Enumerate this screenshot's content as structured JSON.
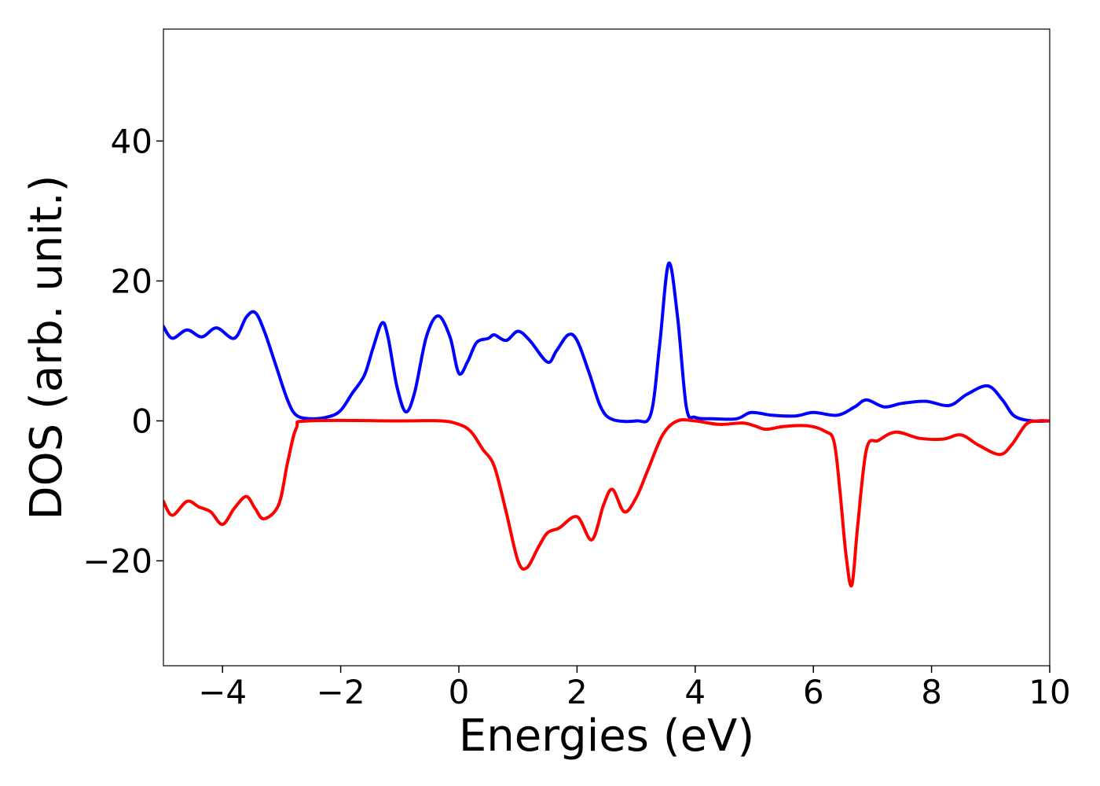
{
  "chart_data": {
    "type": "line",
    "title": "",
    "xlabel": "Energies (eV)",
    "ylabel": "DOS (arb. unit.)",
    "xlim": [
      -5,
      10
    ],
    "ylim": [
      -35,
      56
    ],
    "grid": false,
    "legend": "none",
    "x_ticks": [
      -4,
      -2,
      0,
      2,
      4,
      6,
      8,
      10
    ],
    "x_tick_labels": [
      "−4",
      "−2",
      "0",
      "2",
      "4",
      "6",
      "8",
      "10"
    ],
    "y_ticks": [
      -20,
      0,
      20,
      40
    ],
    "y_tick_labels": [
      "−20",
      "0",
      "20",
      "40"
    ],
    "series": [
      {
        "color": "#0000ff",
        "points": [
          [
            -5.0,
            13.5
          ],
          [
            -4.85,
            11.8
          ],
          [
            -4.6,
            13.0
          ],
          [
            -4.35,
            12.0
          ],
          [
            -4.1,
            13.3
          ],
          [
            -3.8,
            11.8
          ],
          [
            -3.6,
            14.8
          ],
          [
            -3.45,
            15.5
          ],
          [
            -3.3,
            13.0
          ],
          [
            -3.1,
            8.0
          ],
          [
            -2.9,
            3.0
          ],
          [
            -2.75,
            0.8
          ],
          [
            -2.5,
            0.3
          ],
          [
            -2.2,
            0.6
          ],
          [
            -2.0,
            1.5
          ],
          [
            -1.8,
            4.0
          ],
          [
            -1.6,
            6.5
          ],
          [
            -1.45,
            10.5
          ],
          [
            -1.3,
            14.0
          ],
          [
            -1.2,
            12.0
          ],
          [
            -1.05,
            5.0
          ],
          [
            -0.9,
            1.3
          ],
          [
            -0.75,
            4.0
          ],
          [
            -0.55,
            12.0
          ],
          [
            -0.35,
            15.0
          ],
          [
            -0.15,
            12.0
          ],
          [
            0.0,
            6.8
          ],
          [
            0.15,
            8.5
          ],
          [
            0.3,
            11.2
          ],
          [
            0.5,
            11.8
          ],
          [
            0.6,
            12.3
          ],
          [
            0.8,
            11.5
          ],
          [
            1.0,
            12.8
          ],
          [
            1.2,
            11.5
          ],
          [
            1.5,
            8.4
          ],
          [
            1.65,
            10.0
          ],
          [
            1.85,
            12.3
          ],
          [
            2.0,
            11.5
          ],
          [
            2.2,
            7.0
          ],
          [
            2.4,
            2.0
          ],
          [
            2.6,
            0.2
          ],
          [
            3.0,
            0.0
          ],
          [
            3.25,
            1.0
          ],
          [
            3.4,
            11.0
          ],
          [
            3.55,
            22.5
          ],
          [
            3.7,
            15.0
          ],
          [
            3.85,
            2.0
          ],
          [
            4.0,
            0.5
          ],
          [
            4.3,
            0.3
          ],
          [
            4.7,
            0.3
          ],
          [
            4.95,
            1.2
          ],
          [
            5.3,
            0.8
          ],
          [
            5.7,
            0.7
          ],
          [
            6.0,
            1.2
          ],
          [
            6.4,
            0.8
          ],
          [
            6.7,
            2.0
          ],
          [
            6.9,
            3.0
          ],
          [
            7.2,
            2.0
          ],
          [
            7.5,
            2.5
          ],
          [
            7.9,
            2.8
          ],
          [
            8.3,
            2.2
          ],
          [
            8.6,
            3.8
          ],
          [
            8.95,
            5.0
          ],
          [
            9.2,
            3.0
          ],
          [
            9.4,
            0.7
          ],
          [
            9.7,
            0.0
          ],
          [
            10.0,
            0.0
          ]
        ]
      },
      {
        "color": "#ff0000",
        "points": [
          [
            -5.0,
            -11.5
          ],
          [
            -4.85,
            -13.5
          ],
          [
            -4.6,
            -11.5
          ],
          [
            -4.4,
            -12.3
          ],
          [
            -4.2,
            -13.0
          ],
          [
            -4.0,
            -14.8
          ],
          [
            -3.8,
            -12.5
          ],
          [
            -3.6,
            -10.8
          ],
          [
            -3.45,
            -12.5
          ],
          [
            -3.3,
            -14.0
          ],
          [
            -3.05,
            -12.0
          ],
          [
            -2.9,
            -6.0
          ],
          [
            -2.75,
            -1.0
          ],
          [
            -2.55,
            0.0
          ],
          [
            -1.0,
            0.0
          ],
          [
            -0.3,
            0.0
          ],
          [
            0.0,
            -0.5
          ],
          [
            0.2,
            -1.5
          ],
          [
            0.4,
            -4.0
          ],
          [
            0.6,
            -6.5
          ],
          [
            0.8,
            -13.0
          ],
          [
            1.0,
            -20.0
          ],
          [
            1.15,
            -21.0
          ],
          [
            1.35,
            -18.0
          ],
          [
            1.5,
            -16.0
          ],
          [
            1.7,
            -15.3
          ],
          [
            2.0,
            -13.7
          ],
          [
            2.25,
            -17.0
          ],
          [
            2.45,
            -12.0
          ],
          [
            2.6,
            -9.8
          ],
          [
            2.8,
            -13.0
          ],
          [
            3.0,
            -11.0
          ],
          [
            3.2,
            -7.0
          ],
          [
            3.45,
            -2.0
          ],
          [
            3.7,
            0.0
          ],
          [
            4.0,
            0.0
          ],
          [
            4.4,
            -0.5
          ],
          [
            4.8,
            -0.3
          ],
          [
            5.0,
            -0.7
          ],
          [
            5.2,
            -1.2
          ],
          [
            5.5,
            -0.8
          ],
          [
            5.9,
            -0.7
          ],
          [
            6.2,
            -1.5
          ],
          [
            6.35,
            -3.0
          ],
          [
            6.45,
            -10.0
          ],
          [
            6.55,
            -19.0
          ],
          [
            6.65,
            -23.5
          ],
          [
            6.75,
            -15.0
          ],
          [
            6.9,
            -4.0
          ],
          [
            7.1,
            -2.8
          ],
          [
            7.4,
            -1.6
          ],
          [
            7.8,
            -2.5
          ],
          [
            8.2,
            -2.6
          ],
          [
            8.5,
            -2.0
          ],
          [
            8.8,
            -3.5
          ],
          [
            9.15,
            -4.8
          ],
          [
            9.35,
            -3.5
          ],
          [
            9.6,
            -0.5
          ],
          [
            9.8,
            0.0
          ],
          [
            10.0,
            0.0
          ]
        ]
      }
    ]
  }
}
